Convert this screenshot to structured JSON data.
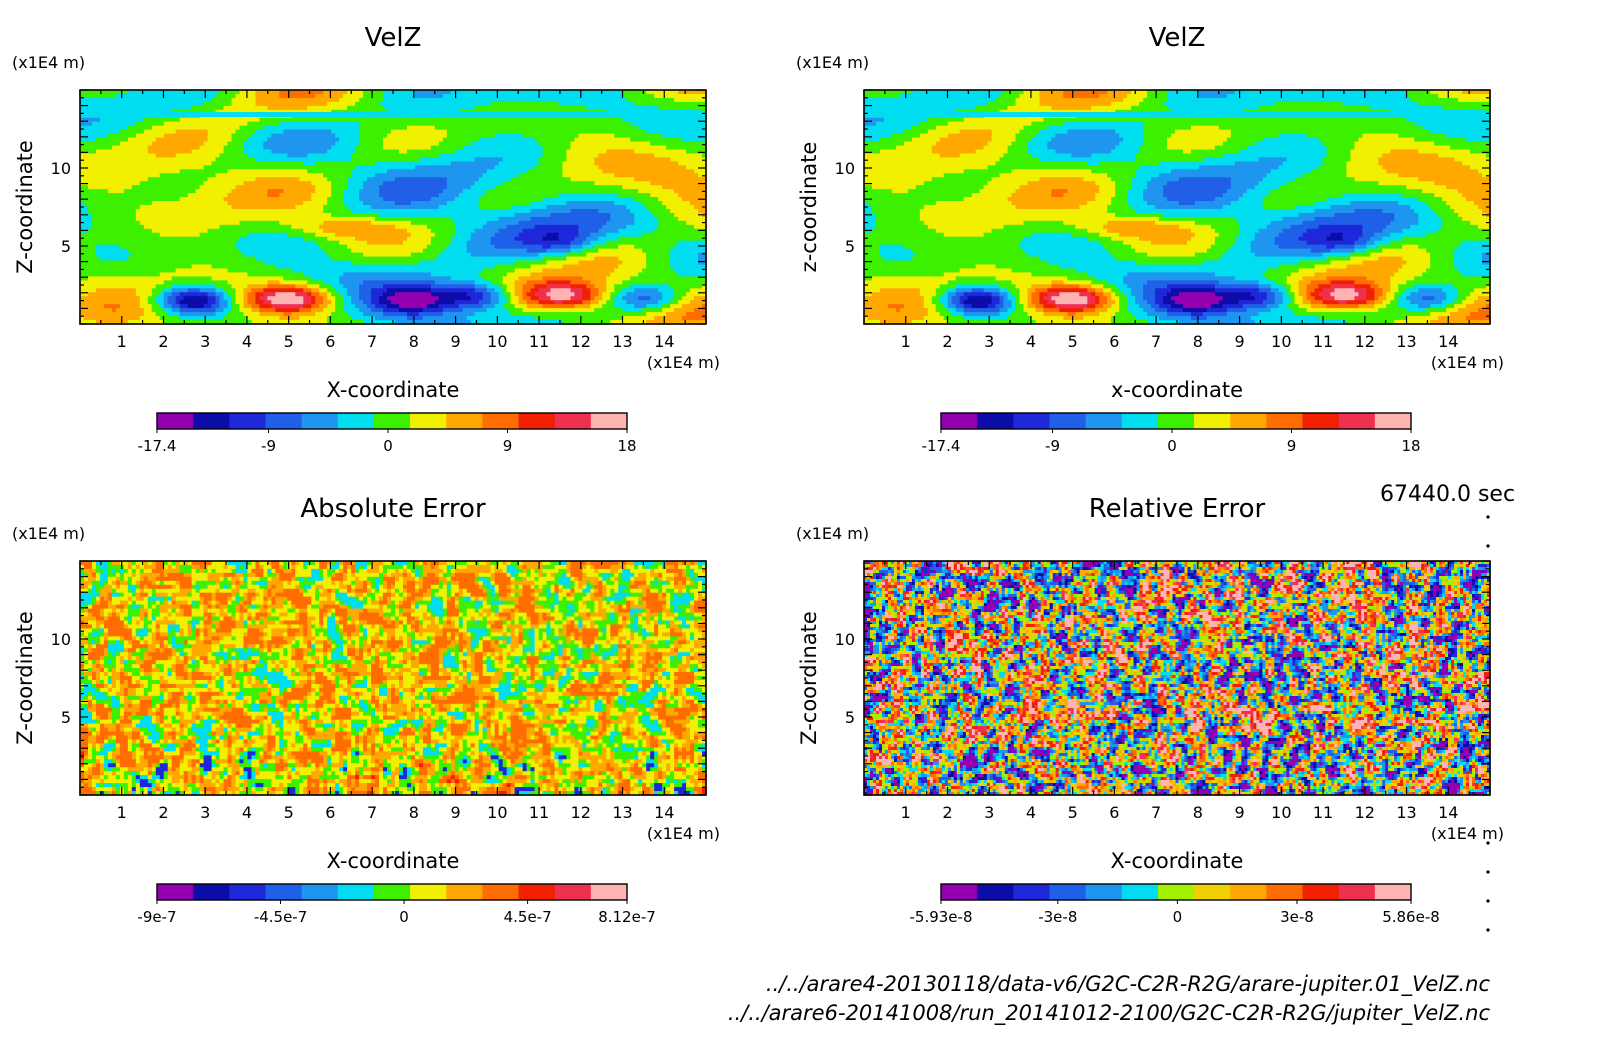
{
  "time_label": "67440.0 sec",
  "files": [
    "../../arare4-20130118/data-v6/G2C-C2R-R2G/arare-jupiter.01_VelZ.nc",
    "../../arare6-20141008/run_20141012-2100/G2C-C2R-R2G/jupiter_VelZ.nc"
  ],
  "chart_data": [
    {
      "type": "heatmap",
      "title": "VelZ",
      "xlabel": "X-coordinate",
      "ylabel": "Z-coordinate",
      "x_unit": "(x1E4 m)",
      "y_unit": "(x1E4 m)",
      "xlim": [
        0,
        15
      ],
      "ylim": [
        0,
        15
      ],
      "x_ticks": [
        "1",
        "2",
        "3",
        "4",
        "5",
        "6",
        "7",
        "8",
        "9",
        "10",
        "11",
        "12",
        "13",
        "14"
      ],
      "y_ticks": [
        "5",
        "10"
      ],
      "colorbar": {
        "min": -17.4,
        "max": 18,
        "labels": [
          "-17.4",
          "-9",
          "0",
          "9",
          "18"
        ],
        "colors": [
          "#9400b0",
          "#0c0ca8",
          "#1e28d8",
          "#2060e8",
          "#1e96f0",
          "#00dcf0",
          "#3cf000",
          "#f0f000",
          "#ffa800",
          "#ff6c00",
          "#f02000",
          "#f03050",
          "#ffb4b4"
        ]
      },
      "features": [
        {
          "type": "min",
          "x": 2.7,
          "z": 1.5,
          "value": -17.4
        },
        {
          "type": "max",
          "x": 5.0,
          "z": 1.6,
          "value": 18
        },
        {
          "type": "min",
          "x": 8.0,
          "z": 1.5,
          "value": -12
        },
        {
          "type": "min",
          "x": 9.5,
          "z": 1.8,
          "value": -13
        },
        {
          "type": "max",
          "x": 11.6,
          "z": 1.8,
          "value": 16
        },
        {
          "type": "min",
          "x": 13.6,
          "z": 1.6,
          "value": -10
        },
        {
          "type": "min",
          "x": 11.5,
          "z": 5.2,
          "value": -7
        }
      ]
    },
    {
      "type": "heatmap",
      "title": "VelZ",
      "xlabel": "x-coordinate",
      "ylabel": "z-coordinate",
      "x_unit": "(x1E4 m)",
      "y_unit": "(x1E4 m)",
      "xlim": [
        0,
        15
      ],
      "ylim": [
        0,
        15
      ],
      "x_ticks": [
        "1",
        "2",
        "3",
        "4",
        "5",
        "6",
        "7",
        "8",
        "9",
        "10",
        "11",
        "12",
        "13",
        "14"
      ],
      "y_ticks": [
        "5",
        "10"
      ],
      "colorbar": {
        "min": -17.4,
        "max": 18,
        "labels": [
          "-17.4",
          "-9",
          "0",
          "9",
          "18"
        ],
        "colors": [
          "#9400b0",
          "#0c0ca8",
          "#1e28d8",
          "#2060e8",
          "#1e96f0",
          "#00dcf0",
          "#3cf000",
          "#f0f000",
          "#ffa800",
          "#ff6c00",
          "#f02000",
          "#f03050",
          "#ffb4b4"
        ]
      },
      "features": [
        {
          "type": "min",
          "x": 2.7,
          "z": 1.5,
          "value": -17.4
        },
        {
          "type": "max",
          "x": 5.0,
          "z": 1.6,
          "value": 18
        },
        {
          "type": "min",
          "x": 8.0,
          "z": 1.5,
          "value": -12
        },
        {
          "type": "min",
          "x": 9.5,
          "z": 1.8,
          "value": -13
        },
        {
          "type": "max",
          "x": 11.6,
          "z": 1.8,
          "value": 16
        },
        {
          "type": "min",
          "x": 13.6,
          "z": 1.6,
          "value": -10
        },
        {
          "type": "min",
          "x": 11.5,
          "z": 5.2,
          "value": -7
        }
      ]
    },
    {
      "type": "heatmap",
      "title": "Absolute Error",
      "xlabel": "X-coordinate",
      "ylabel": "Z-coordinate",
      "x_unit": "(x1E4 m)",
      "y_unit": "(x1E4 m)",
      "xlim": [
        0,
        15
      ],
      "ylim": [
        0,
        15
      ],
      "x_ticks": [
        "1",
        "2",
        "3",
        "4",
        "5",
        "6",
        "7",
        "8",
        "9",
        "10",
        "11",
        "12",
        "13",
        "14"
      ],
      "y_ticks": [
        "5",
        "10"
      ],
      "colorbar": {
        "min": -9e-07,
        "max": 8.12e-07,
        "labels": [
          "-9e-7",
          "-4.5e-7",
          "0",
          "4.5e-7",
          "8.12e-7"
        ],
        "colors": [
          "#9400b0",
          "#0c0ca8",
          "#1e28d8",
          "#2060e8",
          "#1e96f0",
          "#00dcf0",
          "#3cf000",
          "#f0f000",
          "#ffa800",
          "#ff6c00",
          "#f02000",
          "#f03050",
          "#ffb4b4"
        ]
      }
    },
    {
      "type": "heatmap",
      "title": "Relative Error",
      "xlabel": "X-coordinate",
      "ylabel": "Z-coordinate",
      "x_unit": "(x1E4 m)",
      "y_unit": "(x1E4 m)",
      "xlim": [
        0,
        15
      ],
      "ylim": [
        0,
        15
      ],
      "x_ticks": [
        "1",
        "2",
        "3",
        "4",
        "5",
        "6",
        "7",
        "8",
        "9",
        "10",
        "11",
        "12",
        "13",
        "14"
      ],
      "y_ticks": [
        "5",
        "10"
      ],
      "colorbar": {
        "min": -5.93e-08,
        "max": 5.86e-08,
        "labels": [
          "-5.93e-8",
          "-3e-8",
          "0",
          "3e-8",
          "5.86e-8"
        ],
        "colors": [
          "#9400b0",
          "#0c0ca8",
          "#1e28d8",
          "#2060e8",
          "#1e96f0",
          "#00dcf0",
          "#a0f000",
          "#f0d000",
          "#ffa800",
          "#ff6c00",
          "#f02000",
          "#f03050",
          "#ffb4b4"
        ]
      }
    }
  ]
}
